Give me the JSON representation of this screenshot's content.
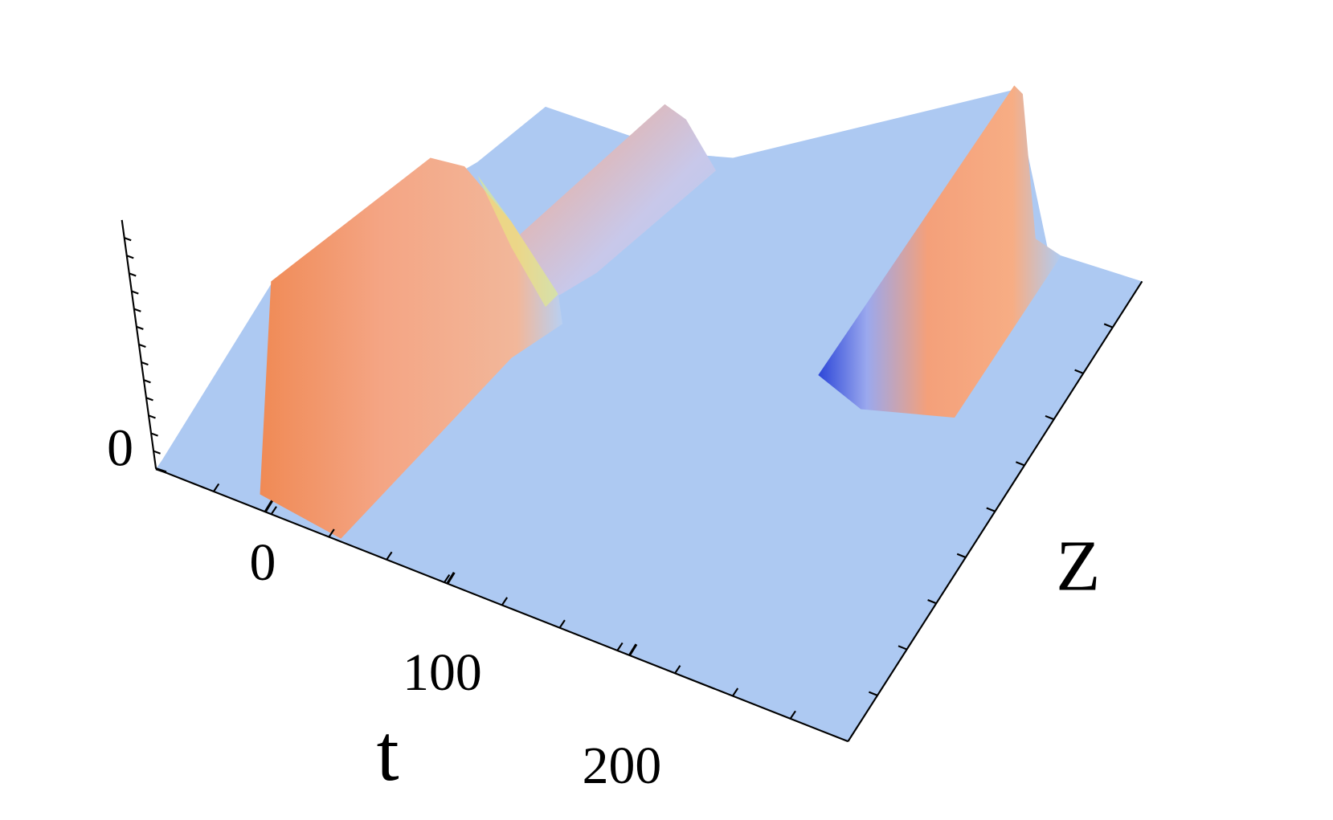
{
  "chart_data": {
    "type": "surface",
    "xlabel": "t",
    "ylabel": "Z",
    "xlim": [
      -60,
      320
    ],
    "xticks": [
      0,
      100,
      200
    ],
    "zlim": [
      0,
      1
    ],
    "zticks": [
      0
    ]
  }
}
